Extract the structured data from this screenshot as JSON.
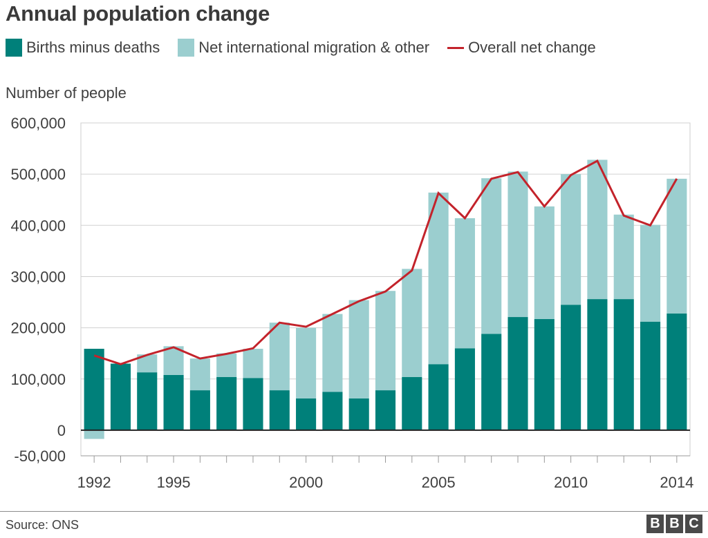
{
  "header": {
    "title": "Annual population change"
  },
  "legend": [
    {
      "label": "Births minus deaths",
      "color": "#00807a",
      "kind": "bar"
    },
    {
      "label": "Net international migration & other",
      "color": "#9bcecf",
      "kind": "bar"
    },
    {
      "label": "Overall net change",
      "color": "#c3232b",
      "kind": "line"
    }
  ],
  "footer": {
    "source": "Source: ONS",
    "logo_letters": [
      "B",
      "B",
      "C"
    ]
  },
  "chart_data": {
    "type": "bar",
    "stacked": true,
    "title": "Annual population change",
    "ylabel": "Number of people",
    "xlabel": "",
    "ylim": [
      -50000,
      600000
    ],
    "yticks": [
      600000,
      500000,
      400000,
      300000,
      200000,
      100000,
      0,
      -50000
    ],
    "ytick_labels": [
      "600,000",
      "500,000",
      "400,000",
      "300,000",
      "200,000",
      "100,000",
      "0",
      "-50,000"
    ],
    "x_tick_labels": [
      {
        "year": 1992,
        "label": "1992"
      },
      {
        "year": 1995,
        "label": "1995"
      },
      {
        "year": 2000,
        "label": "2000"
      },
      {
        "year": 2005,
        "label": "2005"
      },
      {
        "year": 2010,
        "label": "2010"
      },
      {
        "year": 2014,
        "label": "2014"
      }
    ],
    "categories": [
      1992,
      1993,
      1994,
      1995,
      1996,
      1997,
      1998,
      1999,
      2000,
      2001,
      2002,
      2003,
      2004,
      2005,
      2006,
      2007,
      2008,
      2009,
      2010,
      2011,
      2012,
      2013,
      2014
    ],
    "series": [
      {
        "name": "Births minus deaths",
        "color": "#00807a",
        "values": [
          159000,
          130000,
          113000,
          108000,
          78000,
          104000,
          102000,
          78000,
          62000,
          75000,
          62000,
          78000,
          104000,
          129000,
          160000,
          188000,
          221000,
          217000,
          245000,
          256000,
          256000,
          212000,
          228000
        ]
      },
      {
        "name": "Net international migration & other",
        "color": "#9bcecf",
        "values": [
          -17000,
          0,
          35000,
          56000,
          62000,
          46000,
          57000,
          132000,
          138000,
          152000,
          192000,
          194000,
          211000,
          335000,
          254000,
          304000,
          284000,
          220000,
          255000,
          272000,
          165000,
          189000,
          263000
        ]
      },
      {
        "name": "Overall net change",
        "color": "#c3232b",
        "type": "line",
        "values": [
          146000,
          129000,
          147000,
          162000,
          140000,
          149000,
          160000,
          210000,
          202000,
          227000,
          252000,
          271000,
          312000,
          463000,
          414000,
          491000,
          504000,
          437000,
          498000,
          526000,
          419000,
          400000,
          491000
        ]
      }
    ],
    "grid": true,
    "legend_position": "top"
  }
}
